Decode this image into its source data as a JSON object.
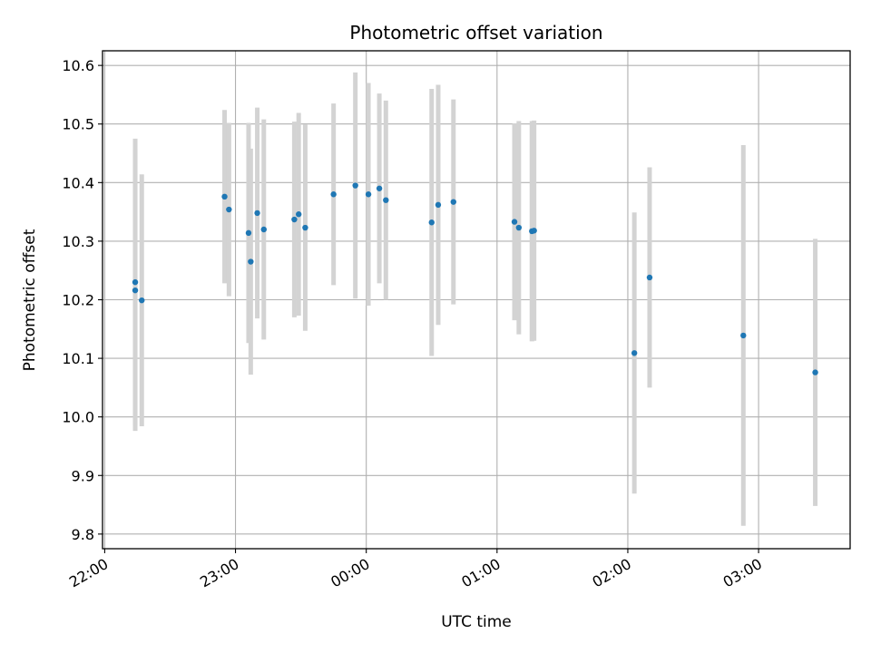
{
  "chart_data": {
    "type": "scatter",
    "title": "Photometric offset variation",
    "xlabel": "UTC time",
    "ylabel": "Photometric offset",
    "xlim": [
      "21:59",
      "03:42"
    ],
    "ylim": [
      9.775,
      10.625
    ],
    "x_ticks": [
      "22:00",
      "23:00",
      "00:00",
      "01:00",
      "02:00",
      "03:00"
    ],
    "y_ticks": [
      9.8,
      9.9,
      10.0,
      10.1,
      10.2,
      10.3,
      10.4,
      10.5,
      10.6
    ],
    "grid": true,
    "point_color": "#1f77b4",
    "errorbar_color": "#d3d3d3",
    "points": [
      {
        "t": "22:14",
        "y": 10.23,
        "err": 0.245
      },
      {
        "t": "22:14",
        "y": 10.216,
        "err": 0.24
      },
      {
        "t": "22:17",
        "y": 10.199,
        "err": 0.215
      },
      {
        "t": "22:55",
        "y": 10.376,
        "err": 0.148
      },
      {
        "t": "22:57",
        "y": 10.354,
        "err": 0.148
      },
      {
        "t": "23:06",
        "y": 10.314,
        "err": 0.188
      },
      {
        "t": "23:07",
        "y": 10.265,
        "err": 0.193
      },
      {
        "t": "23:10",
        "y": 10.348,
        "err": 0.18
      },
      {
        "t": "23:13",
        "y": 10.32,
        "err": 0.188
      },
      {
        "t": "23:27",
        "y": 10.337,
        "err": 0.167
      },
      {
        "t": "23:29",
        "y": 10.346,
        "err": 0.173
      },
      {
        "t": "23:32",
        "y": 10.323,
        "err": 0.176
      },
      {
        "t": "23:45",
        "y": 10.38,
        "err": 0.155
      },
      {
        "t": "23:55",
        "y": 10.395,
        "err": 0.193
      },
      {
        "t": "00:01",
        "y": 10.38,
        "err": 0.19
      },
      {
        "t": "00:06",
        "y": 10.39,
        "err": 0.162
      },
      {
        "t": "00:09",
        "y": 10.37,
        "err": 0.17
      },
      {
        "t": "00:30",
        "y": 10.332,
        "err": 0.228
      },
      {
        "t": "00:33",
        "y": 10.362,
        "err": 0.205
      },
      {
        "t": "00:40",
        "y": 10.367,
        "err": 0.175
      },
      {
        "t": "01:08",
        "y": 10.333,
        "err": 0.168
      },
      {
        "t": "01:10",
        "y": 10.323,
        "err": 0.182
      },
      {
        "t": "01:16",
        "y": 10.317,
        "err": 0.188
      },
      {
        "t": "01:17",
        "y": 10.318,
        "err": 0.188
      },
      {
        "t": "02:03",
        "y": 10.109,
        "err": 0.24
      },
      {
        "t": "02:10",
        "y": 10.238,
        "err": 0.188
      },
      {
        "t": "02:53",
        "y": 10.139,
        "err": 0.325
      },
      {
        "t": "03:26",
        "y": 10.076,
        "err": 0.228
      }
    ]
  }
}
